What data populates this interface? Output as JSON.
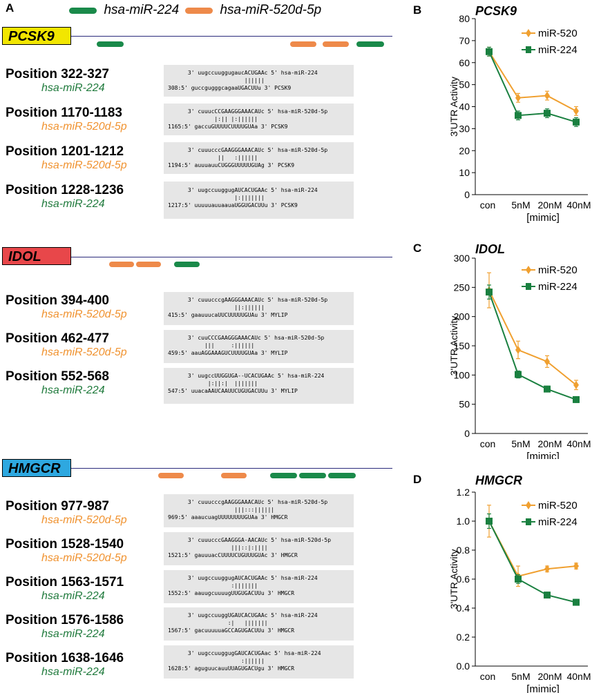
{
  "panel_a": {
    "label": "A",
    "legend": [
      {
        "name": "hsa-miR-224",
        "color": "#1a8a4a"
      },
      {
        "name": "hsa-miR-520d-5p",
        "color": "#ee8a4a"
      }
    ],
    "genes": [
      {
        "name": "PCSK9",
        "box_color": "#f2e600",
        "sites": [
          {
            "position": "Position 322-327",
            "mirna": "hsa-miR-224",
            "type": "green",
            "lines": [
              "      3' uugccuuggugaucACUGAAc 5' hsa-miR-224",
              "                       ||||||",
              "308:5' guccgugggcagaaUGACUUu 3' PCSK9"
            ]
          },
          {
            "position": "Position 1170-1183",
            "mirna": "hsa-miR-520d-5p",
            "type": "orange",
            "lines": [
              "      3' cuuucCCGAAGGGAAACAUc 5' hsa-miR-520d-5p",
              "              |:|| |:||||||",
              "1165:5' gaccuGUUUUCUUUUGUAa 3' PCSK9"
            ]
          },
          {
            "position": "Position 1201-1212",
            "mirna": "hsa-miR-520d-5p",
            "type": "orange",
            "lines": [
              "      3' cuuucccGAAGGGAAACAUc 5' hsa-miR-520d-5p",
              "               ||   :||||||",
              "1194:5' auuuauuCUGGGUUUUUGUAg 3' PCSK9"
            ]
          },
          {
            "position": "Position 1228-1236",
            "mirna": "hsa-miR-224",
            "type": "green",
            "lines": [
              "      3' uugccuuggugAUCACUGAAc 5' hsa-miR-224",
              "                    |:|||||||",
              "1217:5' uuuuuauuaauaUGGUGACUUu 3' PCSK9"
            ]
          }
        ]
      },
      {
        "name": "IDOL",
        "box_color": "#e8474a",
        "sites": [
          {
            "position": "Position 394-400",
            "mirna": "hsa-miR-520d-5p",
            "type": "orange",
            "lines": [
              "      3' cuuucccgAAGGGAAACAUc 5' hsa-miR-520d-5p",
              "                    ||:||||||",
              "415:5' gaauuucaUUCUUUUUGUAu 3' MYLIP"
            ]
          },
          {
            "position": "Position 462-477",
            "mirna": "hsa-miR-520d-5p",
            "type": "orange",
            "lines": [
              "      3' cuuCCCGAAGGGAAACAUc 5' hsa-miR-520d-5p",
              "           |||     :||||||",
              "459:5' aauAGGAAAGUCUUUUGUAa 3' MYLIP"
            ]
          },
          {
            "position": "Position 552-568",
            "mirna": "hsa-miR-224",
            "type": "green",
            "lines": [
              "      3' uugccUUGGUGA--UCACUGAAc 5' hsa-miR-224",
              "            |:||:|  |||||||",
              "547:5' uuacaAAUCAAUUCUGUGACUUu 3' MYLIP"
            ]
          }
        ]
      },
      {
        "name": "HMGCR",
        "box_color": "#2ea8e0",
        "sites": [
          {
            "position": "Position 977-987",
            "mirna": "hsa-miR-520d-5p",
            "type": "orange",
            "lines": [
              "      3' cuuucccgAAGGGAAACAUc 5' hsa-miR-520d-5p",
              "                    |||:::||||||",
              "969:5' aaaucuagUUUUUUUUGUAa 3' HMGCR"
            ]
          },
          {
            "position": "Position 1528-1540",
            "mirna": "hsa-miR-520d-5p",
            "type": "orange",
            "lines": [
              "      3' cuuucccGAAGGGA-AACAUc 5' hsa-miR-520d-5p",
              "                   |||::|:||||",
              "1521:5' gauuuacCUUUUCUGUUUGUAc 3' HMGCR"
            ]
          },
          {
            "position": "Position 1563-1571",
            "mirna": "hsa-miR-224",
            "type": "green",
            "lines": [
              "      3' uugccuuggugAUCACUGAAc 5' hsa-miR-224",
              "                   :|||||||",
              "1552:5' aauugcuuuugUUGUGACUUu 3' HMGCR"
            ]
          },
          {
            "position": "Position 1576-1586",
            "mirna": "hsa-miR-224",
            "type": "green",
            "lines": [
              "      3' uugccuuggUGAUCACUGAAc 5' hsa-miR-224",
              "                  :|   |||||||",
              "1567:5' gacuuuuuaGCCAGUGACUUu 3' HMGCR"
            ]
          },
          {
            "position": "Position 1638-1646",
            "mirna": "hsa-miR-224",
            "type": "green",
            "lines": [
              "      3' uugccuuggugGAUCACUGAac 5' hsa-miR-224",
              "                      :||||||",
              "1628:5' aguguucauuUUAGUGACUgu 3' HMGCR"
            ]
          }
        ]
      }
    ]
  },
  "chart_data": [
    {
      "type": "line",
      "panel": "B",
      "title": "PCSK9",
      "categories": [
        "con",
        "5nM",
        "20nM",
        "40nM"
      ],
      "xlabel": "[mimic]",
      "ylabel": "3'UTR Activity",
      "ylim": [
        0,
        80
      ],
      "yticks": [
        0,
        10,
        20,
        30,
        40,
        50,
        60,
        70,
        80
      ],
      "series": [
        {
          "name": "miR-520",
          "color": "#f0a030",
          "marker": "diamond",
          "values": [
            65,
            44,
            45,
            38
          ],
          "errors": [
            2,
            2,
            2,
            2
          ]
        },
        {
          "name": "miR-224",
          "color": "#1a8040",
          "marker": "square",
          "values": [
            65,
            36,
            37,
            33
          ],
          "errors": [
            2,
            2,
            2,
            2
          ]
        }
      ]
    },
    {
      "type": "line",
      "panel": "C",
      "title": "IDOL",
      "categories": [
        "con",
        "5nM",
        "20nM",
        "40nM"
      ],
      "xlabel": "[mimic]",
      "ylabel": "3'UTR Activity",
      "ylim": [
        0,
        300
      ],
      "yticks": [
        0,
        50,
        100,
        150,
        200,
        250,
        300
      ],
      "series": [
        {
          "name": "miR-520",
          "color": "#f0a030",
          "marker": "diamond",
          "values": [
            245,
            143,
            123,
            83
          ],
          "errors": [
            30,
            15,
            10,
            8
          ]
        },
        {
          "name": "miR-224",
          "color": "#1a8040",
          "marker": "square",
          "values": [
            242,
            101,
            76,
            58
          ],
          "errors": [
            12,
            6,
            5,
            5
          ]
        }
      ]
    },
    {
      "type": "line",
      "panel": "D",
      "title": "HMGCR",
      "categories": [
        "con",
        "5nM",
        "20nM",
        "40nM"
      ],
      "xlabel": "[mimic]",
      "ylabel": "3'UTR Activity",
      "ylim": [
        0,
        1.2
      ],
      "yticks": [
        0,
        0.2,
        0.4,
        0.6,
        0.8,
        1.0,
        1.2
      ],
      "series": [
        {
          "name": "miR-520",
          "color": "#f0a030",
          "marker": "diamond",
          "values": [
            1.0,
            0.62,
            0.67,
            0.69
          ],
          "errors": [
            0.11,
            0.07,
            0.02,
            0.02
          ]
        },
        {
          "name": "miR-224",
          "color": "#1a8040",
          "marker": "square",
          "values": [
            1.0,
            0.6,
            0.49,
            0.44
          ],
          "errors": [
            0.05,
            0.03,
            0.02,
            0.02
          ]
        }
      ]
    }
  ]
}
